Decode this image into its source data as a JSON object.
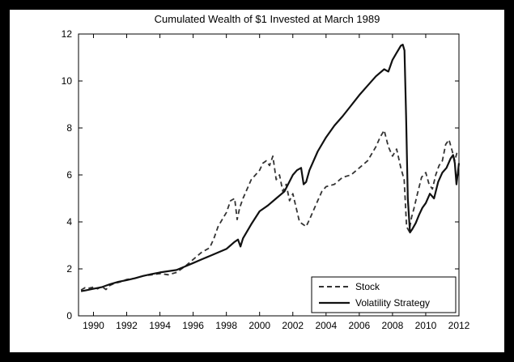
{
  "chart_data": {
    "type": "line",
    "title": "Cumulated Wealth of $1 Invested at March 1989",
    "xlabel": "",
    "ylabel": "",
    "xlim": [
      1989.1,
      2012.0
    ],
    "ylim": [
      0,
      12
    ],
    "x_ticks": [
      "1990",
      "1992",
      "1994",
      "1996",
      "1998",
      "2000",
      "2002",
      "2004",
      "2006",
      "2008",
      "2010",
      "2012"
    ],
    "y_ticks": [
      "0",
      "2",
      "4",
      "6",
      "8",
      "10",
      "12"
    ],
    "grid": false,
    "legend_position": "bottom-right",
    "series": [
      {
        "name": "Stock",
        "style": "dashed",
        "color": "#333333",
        "x": [
          1989.25,
          1989.5,
          1989.75,
          1990.0,
          1990.25,
          1990.5,
          1990.75,
          1991.0,
          1991.25,
          1991.5,
          1991.75,
          1992.0,
          1992.5,
          1993.0,
          1993.5,
          1994.0,
          1994.5,
          1995.0,
          1995.5,
          1996.0,
          1996.5,
          1997.0,
          1997.25,
          1997.5,
          1997.75,
          1998.0,
          1998.25,
          1998.5,
          1998.65,
          1998.8,
          1999.0,
          1999.25,
          1999.5,
          1999.75,
          2000.0,
          2000.2,
          2000.4,
          2000.6,
          2000.8,
          2001.0,
          2001.2,
          2001.4,
          2001.6,
          2001.8,
          2002.0,
          2002.2,
          2002.4,
          2002.6,
          2002.8,
          2003.0,
          2003.25,
          2003.5,
          2003.75,
          2004.0,
          2004.5,
          2005.0,
          2005.5,
          2006.0,
          2006.5,
          2007.0,
          2007.25,
          2007.5,
          2007.75,
          2008.0,
          2008.25,
          2008.5,
          2008.7,
          2008.85,
          2009.0,
          2009.15,
          2009.3,
          2009.5,
          2009.75,
          2010.0,
          2010.2,
          2010.4,
          2010.6,
          2010.8,
          2011.0,
          2011.2,
          2011.4,
          2011.6,
          2011.75,
          2011.9,
          2012.0
        ],
        "values": [
          1.1,
          1.2,
          1.18,
          1.22,
          1.15,
          1.25,
          1.12,
          1.3,
          1.38,
          1.42,
          1.48,
          1.55,
          1.6,
          1.7,
          1.75,
          1.8,
          1.75,
          1.85,
          2.1,
          2.4,
          2.7,
          2.9,
          3.3,
          3.8,
          4.1,
          4.4,
          4.9,
          5.0,
          4.1,
          4.6,
          5.0,
          5.4,
          5.8,
          6.0,
          6.2,
          6.5,
          6.6,
          6.4,
          6.8,
          5.8,
          6.0,
          5.3,
          5.6,
          4.9,
          5.2,
          4.6,
          4.0,
          3.9,
          3.8,
          4.1,
          4.5,
          4.9,
          5.3,
          5.5,
          5.6,
          5.9,
          6.0,
          6.3,
          6.6,
          7.2,
          7.6,
          7.9,
          7.2,
          6.8,
          7.1,
          6.3,
          5.8,
          3.8,
          3.6,
          4.2,
          4.6,
          5.2,
          5.9,
          6.1,
          5.6,
          5.4,
          6.0,
          6.4,
          6.6,
          7.3,
          7.5,
          7.0,
          6.6,
          7.0,
          7.0
        ]
      },
      {
        "name": "Volatility Strategy",
        "style": "solid",
        "color": "#111111",
        "x": [
          1989.25,
          1989.5,
          1990.0,
          1990.5,
          1991.0,
          1991.5,
          1992.0,
          1992.5,
          1993.0,
          1993.5,
          1994.0,
          1994.5,
          1995.0,
          1995.5,
          1996.0,
          1996.5,
          1997.0,
          1997.5,
          1998.0,
          1998.25,
          1998.5,
          1998.7,
          1998.85,
          1999.0,
          1999.5,
          2000.0,
          2000.5,
          2001.0,
          2001.5,
          2002.0,
          2002.25,
          2002.5,
          2002.65,
          2002.8,
          2003.0,
          2003.5,
          2004.0,
          2004.5,
          2005.0,
          2005.5,
          2006.0,
          2006.5,
          2007.0,
          2007.5,
          2007.75,
          2008.0,
          2008.25,
          2008.5,
          2008.62,
          2008.72,
          2008.82,
          2008.92,
          2009.05,
          2009.2,
          2009.4,
          2009.6,
          2009.8,
          2010.0,
          2010.25,
          2010.5,
          2010.75,
          2011.0,
          2011.25,
          2011.5,
          2011.65,
          2011.75,
          2011.85,
          2011.95,
          2012.0
        ],
        "values": [
          1.05,
          1.08,
          1.15,
          1.22,
          1.35,
          1.45,
          1.52,
          1.6,
          1.7,
          1.78,
          1.85,
          1.9,
          1.95,
          2.1,
          2.25,
          2.4,
          2.55,
          2.7,
          2.85,
          3.0,
          3.15,
          3.25,
          2.95,
          3.3,
          3.9,
          4.45,
          4.7,
          5.0,
          5.3,
          6.0,
          6.2,
          6.3,
          5.6,
          5.7,
          6.2,
          7.0,
          7.6,
          8.1,
          8.5,
          8.95,
          9.4,
          9.8,
          10.2,
          10.5,
          10.4,
          10.9,
          11.2,
          11.5,
          11.55,
          11.3,
          8.5,
          5.0,
          3.55,
          3.7,
          3.95,
          4.3,
          4.6,
          4.8,
          5.2,
          5.0,
          5.7,
          6.1,
          6.3,
          6.7,
          6.85,
          6.5,
          5.6,
          6.2,
          6.5
        ]
      }
    ]
  }
}
